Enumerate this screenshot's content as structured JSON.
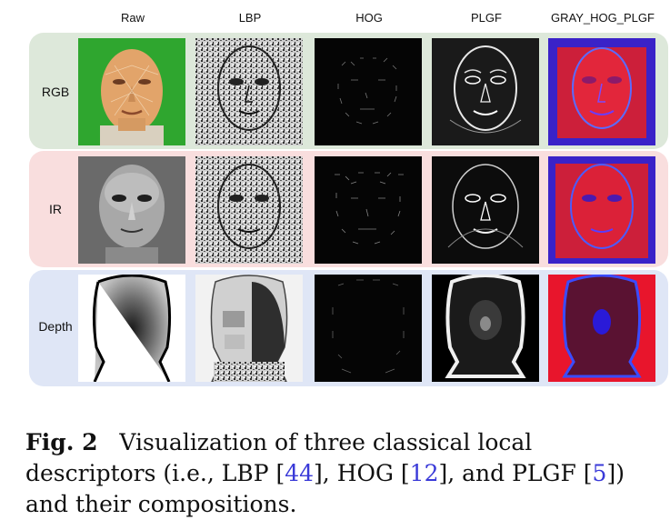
{
  "columns": [
    "Raw",
    "LBP",
    "HOG",
    "PLGF",
    "GRAY_HOG_PLGF"
  ],
  "rows": [
    {
      "label": "RGB",
      "band_color": "#dde8da"
    },
    {
      "label": "IR",
      "band_color": "#f9dede"
    },
    {
      "label": "Depth",
      "band_color": "#dfe6f6"
    }
  ],
  "caption": {
    "fig_label": "Fig. 2",
    "text_a": "Visualization of three classical local descriptors (i.e., LBP [",
    "ref1": "44",
    "text_b": "], HOG [",
    "ref2": "12",
    "text_c": "], and PLGF [",
    "ref3": "5",
    "text_d": "]) and their compositions."
  }
}
